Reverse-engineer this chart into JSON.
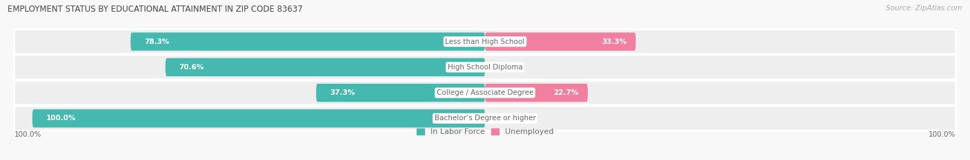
{
  "title": "EMPLOYMENT STATUS BY EDUCATIONAL ATTAINMENT IN ZIP CODE 83637",
  "source": "Source: ZipAtlas.com",
  "categories": [
    "Less than High School",
    "High School Diploma",
    "College / Associate Degree",
    "Bachelor’s Degree or higher"
  ],
  "labor_force": [
    78.3,
    70.6,
    37.3,
    100.0
  ],
  "unemployed": [
    33.3,
    0.0,
    22.7,
    0.0
  ],
  "labor_force_color": "#45b8b0",
  "unemployed_color": "#f080a0",
  "row_bg_color": "#eeeeee",
  "title_color": "#444444",
  "label_color": "#666666",
  "value_color_white": "#ffffff",
  "value_color_outside": "#888888",
  "figsize": [
    14.06,
    2.33
  ],
  "dpi": 100,
  "legend_lf": "In Labor Force",
  "legend_un": "Unemployed",
  "bottom_left_label": "100.0%",
  "bottom_right_label": "100.0%"
}
